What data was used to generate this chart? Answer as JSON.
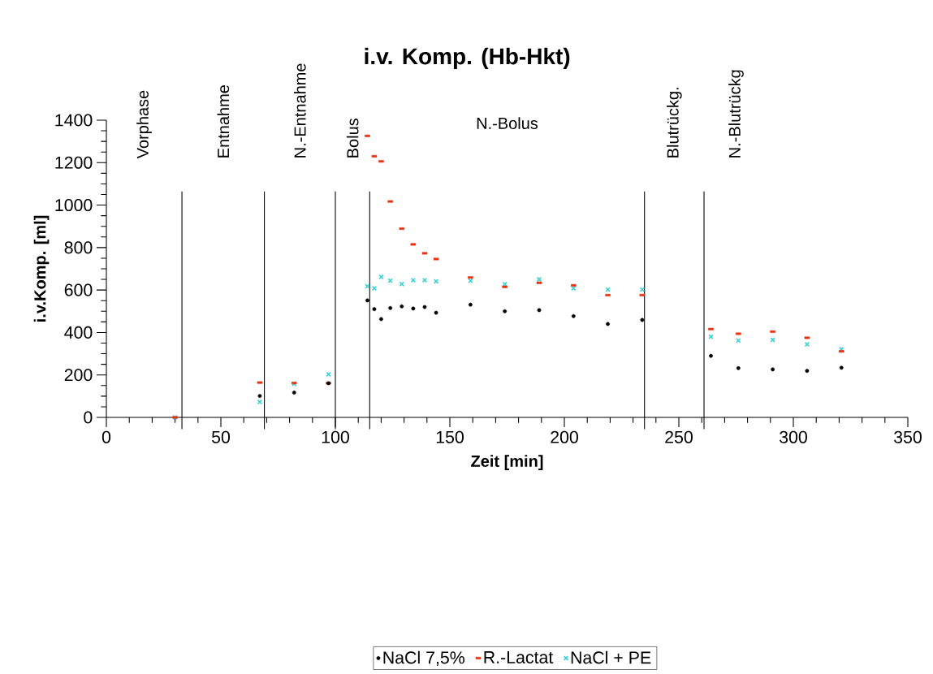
{
  "chart_data": {
    "type": "scatter",
    "title": "i.v. Komp. (Hb-Hkt)",
    "xlabel": "Zeit [min]",
    "ylabel": "i.v.Komp. [ml]",
    "x": [
      30,
      67,
      82,
      97,
      114,
      117,
      120,
      124,
      129,
      134,
      139,
      144,
      159,
      174,
      189,
      204,
      219,
      234,
      264,
      276,
      291,
      306,
      321
    ],
    "series": [
      {
        "name": "NaCl 7,5%",
        "color": "#000000",
        "marker": "circle",
        "values": [
          null,
          101,
          117,
          161,
          551,
          510,
          463,
          515,
          523,
          513,
          520,
          493,
          531,
          500,
          505,
          477,
          440,
          459,
          290,
          232,
          226,
          219,
          234
        ]
      },
      {
        "name": "R.-Lactat",
        "color": "#e8310f",
        "marker": "square",
        "values": [
          0,
          164,
          162,
          161,
          1326,
          1230,
          1206,
          1017,
          889,
          815,
          773,
          746,
          659,
          615,
          634,
          622,
          576,
          576,
          416,
          394,
          404,
          375,
          311
        ]
      },
      {
        "name": "NaCl + PE",
        "color": "#3fd3d6",
        "marker": "cross",
        "values": [
          0,
          73,
          158,
          203,
          618,
          608,
          662,
          644,
          628,
          646,
          646,
          641,
          644,
          627,
          650,
          608,
          602,
          602,
          380,
          362,
          365,
          344,
          321
        ]
      }
    ],
    "xlim": [
      0,
      350
    ],
    "xticks": [
      0,
      50,
      100,
      150,
      200,
      250,
      300,
      350
    ],
    "ylim": [
      0,
      1400
    ],
    "yticks": [
      0,
      200,
      400,
      600,
      800,
      1000,
      1200,
      1400
    ],
    "ref_lines": [
      {
        "axis": "x",
        "value": 33
      },
      {
        "axis": "x",
        "value": 69
      },
      {
        "axis": "x",
        "value": 100
      },
      {
        "axis": "x",
        "value": 115
      },
      {
        "axis": "x",
        "value": 235
      },
      {
        "axis": "x",
        "value": 261
      }
    ],
    "annotations": [
      "Vorphase",
      "Entnahme",
      "N.-Entnahme",
      "Bolus",
      "N.-Bolus",
      "Blutrückg.",
      "N.-Blutrückg"
    ],
    "legend": "bottom"
  }
}
